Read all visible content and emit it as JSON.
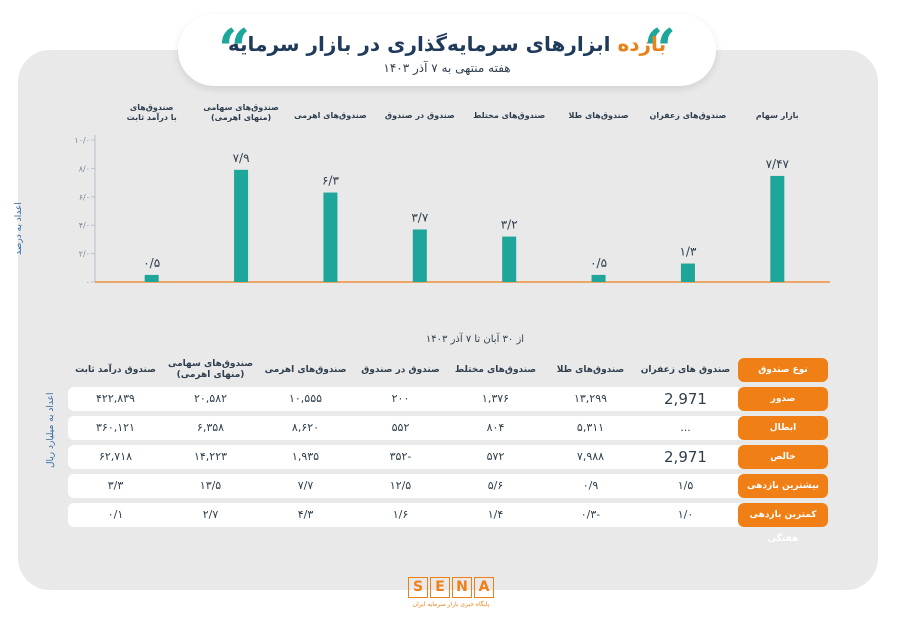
{
  "header": {
    "title_accent": "بازده",
    "title_rest": "ابزارهای سرمایه‌گذاری در بازار سرمایه",
    "subtitle": "هفته منتهی به ۷ آذر ۱۴۰۳"
  },
  "colors": {
    "bar": "#1fa69a",
    "accent": "#f07f16",
    "title": "#1f3a5a",
    "axis_label": "#2e6aa3"
  },
  "chart_data": {
    "type": "bar",
    "categories": [
      "صندوق‌های با درآمد ثابت",
      "صندوق‌های سهامی (منهای اهرمی)",
      "صندوق‌های اهرمی",
      "صندوق در صندوق",
      "صندوق‌های مختلط",
      "صندوق‌های طلا",
      "صندوق‌های زعفران",
      "بازار سهام"
    ],
    "category_lines": [
      [
        "صندوق‌های",
        "با درآمد ثابت"
      ],
      [
        "صندوق‌های سهامی",
        "(منهای اهرمی)"
      ],
      [
        "صندوق‌های اهرمی"
      ],
      [
        "صندوق در صندوق"
      ],
      [
        "صندوق‌های مختلط"
      ],
      [
        "صندوق‌های طلا"
      ],
      [
        "صندوق‌های زعفران"
      ],
      [
        "بازار سهام"
      ]
    ],
    "values": [
      0.5,
      7.9,
      6.3,
      3.7,
      3.2,
      0.5,
      1.3,
      7.47
    ],
    "value_labels": [
      "۰/۵",
      "۷/۹",
      "۶/۳",
      "۳/۷",
      "۳/۲",
      "۰/۵",
      "۱/۳",
      "۷/۴۷"
    ],
    "ylim": [
      0,
      10
    ],
    "yticks": [
      0,
      2,
      4,
      6,
      8,
      10
    ],
    "ytick_labels": [
      "۰",
      "۲/۰",
      "۴/۰",
      "۶/۰",
      "۸/۰",
      "۱۰/۰"
    ],
    "ylabel": "اعداد به درصد"
  },
  "table": {
    "period": "از ۳۰ آبان تا ۷ آذر ۱۴۰۳",
    "unit_label": "اعداد به میلیارد ریال",
    "header_label": "نوع صندوق",
    "columns": [
      "صندوق‌ های زعفران",
      "صندوق‌های طلا",
      "صندوق‌های مختلط",
      "صندوق در صندوق",
      "صندوق‌های اهرمی",
      "صندوق‌های سهامی (منهای اهرمی)",
      "صندوق درآمد ثابت"
    ],
    "rows": [
      {
        "label": "صدور",
        "values": [
          "2,971",
          "۱۳,۲۹۹",
          "۱,۳۷۶",
          "۲۰۰",
          "۱۰,۵۵۵",
          "۲۰,۵۸۲",
          "۴۲۲,۸۳۹"
        ]
      },
      {
        "label": "ابطال",
        "values": [
          "...",
          "۵,۳۱۱",
          "۸۰۴",
          "۵۵۲",
          "۸,۶۲۰",
          "۶,۳۵۸",
          "۳۶۰,۱۲۱"
        ]
      },
      {
        "label": "خالص",
        "values": [
          "2,971",
          "۷,۹۸۸",
          "۵۷۲",
          "-۳۵۲",
          "۱,۹۳۵",
          "۱۴,۲۲۳",
          "۶۲,۷۱۸"
        ]
      },
      {
        "label": "بیشترین بازدهی هفتگی",
        "values": [
          "۱/۵",
          "۰/۹",
          "۵/۶",
          "۱۲/۵",
          "۷/۷",
          "۱۳/۵",
          "۳/۳"
        ]
      },
      {
        "label": "کمترین بازدهی هفتگی",
        "values": [
          "۱/۰",
          "-۰/۳",
          "۱/۴",
          "۱/۶",
          "۴/۳",
          "۲/۷",
          "۰/۱"
        ]
      }
    ]
  },
  "logo": {
    "letters": [
      "S",
      "E",
      "N",
      "A"
    ],
    "tagline": "پایگاه خبری بازار سرمایه ایران"
  }
}
